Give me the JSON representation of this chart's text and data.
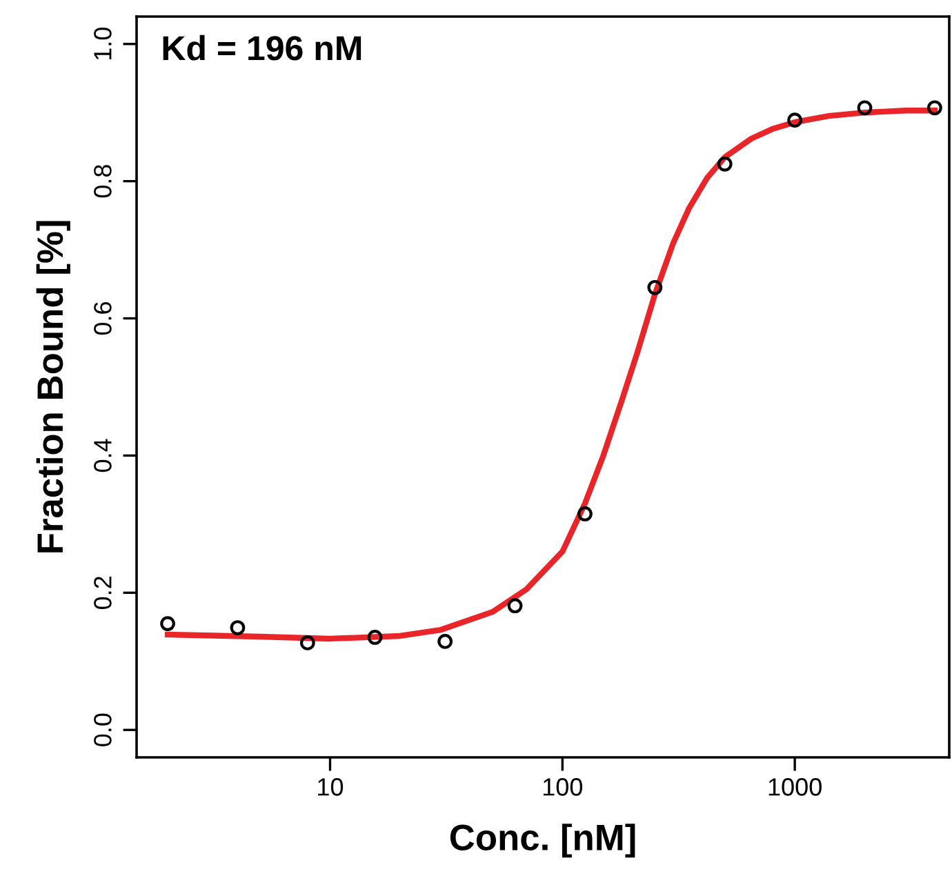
{
  "chart_data": {
    "type": "scatter",
    "xlabel": "Conc. [nM]",
    "ylabel": "Fraction Bound [%]",
    "annotations": [
      "Kd = 196 nM"
    ],
    "log": "x",
    "marker": "circle",
    "grid": false,
    "legend": false,
    "xlim": [
      1.47,
      4620
    ],
    "xticks": [
      10,
      100,
      1000
    ],
    "ylim": [
      -0.04,
      1.04
    ],
    "yticks": [
      {
        "value": 0,
        "label": "0.0"
      },
      0.2,
      0.4,
      0.6,
      0.8,
      {
        "value": 1,
        "label": "1.0"
      }
    ],
    "series": [
      {
        "color": "#000000",
        "x": [
          2,
          4,
          8,
          15.6,
          31.25,
          62.5,
          125,
          250,
          500,
          1000,
          2000,
          4000
        ],
        "values": [
          0.155,
          0.149,
          0.127,
          0.135,
          0.129,
          0.181,
          0.315,
          0.645,
          0.825,
          0.889,
          0.907,
          0.907
        ]
      },
      {
        "type": "line",
        "color": "#e8262a",
        "marker": "none",
        "x": [
          2,
          5,
          10,
          20,
          30,
          50,
          70,
          100,
          125,
          150,
          180,
          210,
          250,
          300,
          350,
          420,
          500,
          650,
          800,
          1000,
          1400,
          2000,
          3000,
          4000
        ],
        "values": [
          0.139,
          0.136,
          0.133,
          0.137,
          0.146,
          0.172,
          0.205,
          0.26,
          0.33,
          0.4,
          0.48,
          0.55,
          0.635,
          0.71,
          0.76,
          0.805,
          0.835,
          0.862,
          0.876,
          0.886,
          0.895,
          0.9,
          0.903,
          0.903
        ]
      }
    ]
  }
}
